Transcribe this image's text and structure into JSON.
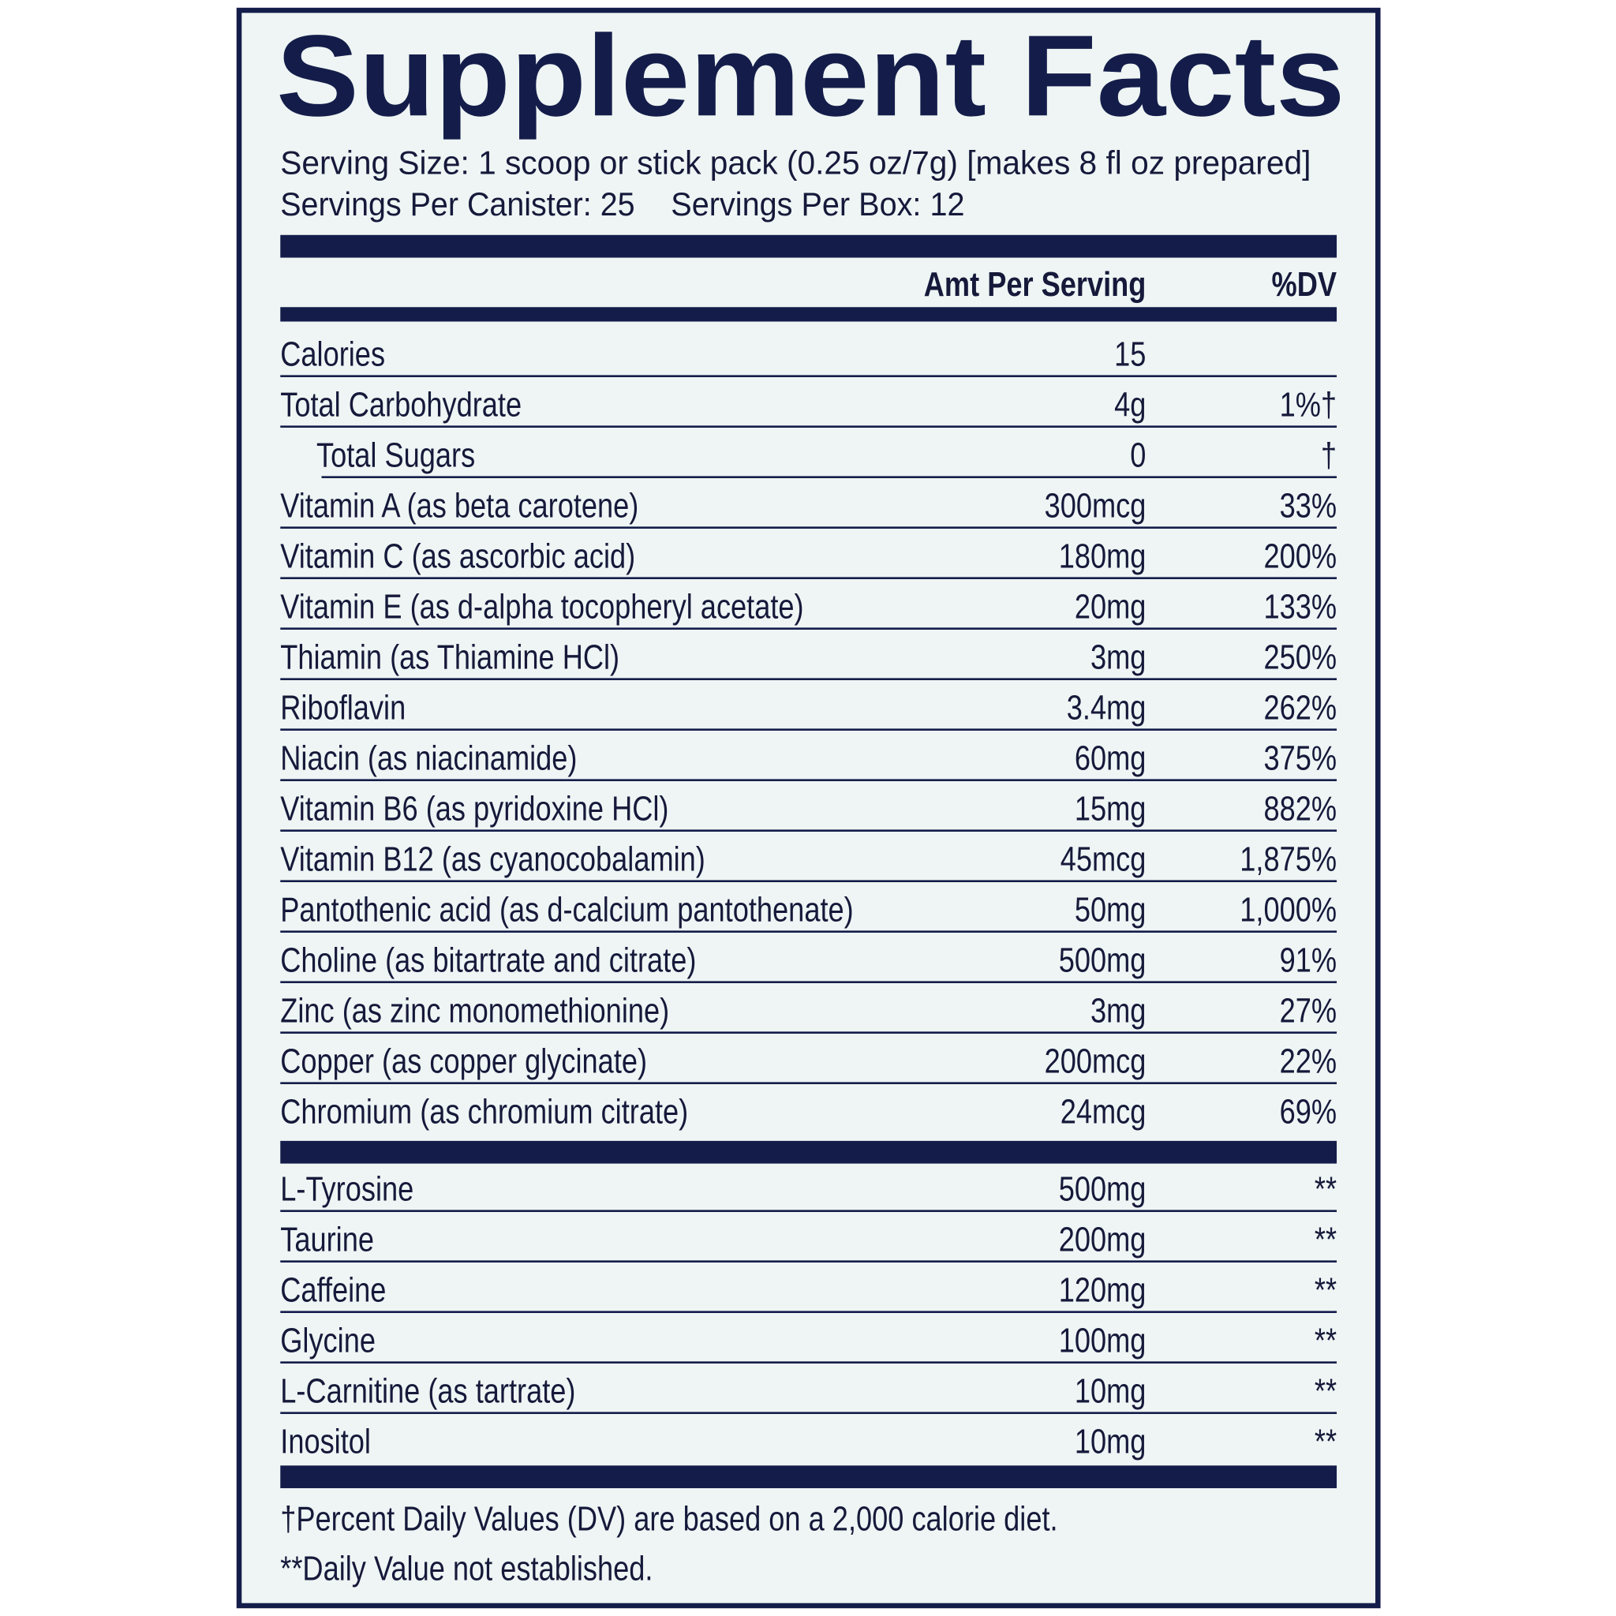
{
  "title": "Supplement Facts",
  "serving_size": "Serving Size: 1 scoop or stick pack (0.25 oz/7g) [makes 8 fl oz prepared]",
  "servings_per_canister": "Servings Per Canister: 25",
  "servings_per_box": "Servings Per Box: 12",
  "table": {
    "header": [
      "Amt Per Serving",
      "%DV"
    ],
    "groups": [
      [
        {
          "name": "Calories",
          "amount": "15",
          "dv": null
        },
        {
          "name": "Total Carbohydrate",
          "amount": "4g",
          "dv": "1%†"
        },
        {
          "name": "Total Sugars",
          "amount": "0",
          "dv": "†",
          "indented": true
        },
        {
          "name": "Vitamin A (as beta carotene)",
          "amount": "300mcg",
          "dv": "33%"
        },
        {
          "name": "Vitamin C (as ascorbic acid)",
          "amount": "180mg",
          "dv": "200%"
        },
        {
          "name": "Vitamin E (as d-alpha tocopheryl acetate)",
          "amount": "20mg",
          "dv": "133%"
        },
        {
          "name": "Thiamin (as Thiamine HCl)",
          "amount": "3mg",
          "dv": "250%"
        },
        {
          "name": "Riboflavin",
          "amount": "3.4mg",
          "dv": "262%"
        },
        {
          "name": "Niacin (as niacinamide)",
          "amount": "60mg",
          "dv": "375%"
        },
        {
          "name": "Vitamin B6 (as pyridoxine HCl)",
          "amount": "15mg",
          "dv": "882%"
        },
        {
          "name": "Vitamin B12 (as cyanocobalamin)",
          "amount": "45mcg",
          "dv": "1,875%"
        },
        {
          "name": "Pantothenic acid (as d-calcium pantothenate)",
          "amount": "50mg",
          "dv": "1,000%"
        },
        {
          "name": "Choline (as bitartrate and citrate)",
          "amount": "500mg",
          "dv": "91%"
        },
        {
          "name": "Zinc (as zinc monomethionine)",
          "amount": "3mg",
          "dv": "27%"
        },
        {
          "name": "Copper (as copper glycinate)",
          "amount": "200mcg",
          "dv": "22%"
        },
        {
          "name": "Chromium (as chromium citrate)",
          "amount": "24mcg",
          "dv": "69%"
        }
      ],
      [
        {
          "name": "L-Tyrosine",
          "amount": "500mg",
          "dv": "**"
        },
        {
          "name": "Taurine",
          "amount": "200mg",
          "dv": "**"
        },
        {
          "name": "Caffeine",
          "amount": "120mg",
          "dv": "**"
        },
        {
          "name": "Glycine",
          "amount": "100mg",
          "dv": "**"
        },
        {
          "name": "L-Carnitine (as tartrate)",
          "amount": "10mg",
          "dv": "**"
        },
        {
          "name": "Inositol",
          "amount": "10mg",
          "dv": "**"
        }
      ]
    ]
  },
  "footnotes": [
    "†Percent Daily Values (DV) are based on a 2,000 calorie diet.",
    "**Daily Value not established."
  ]
}
